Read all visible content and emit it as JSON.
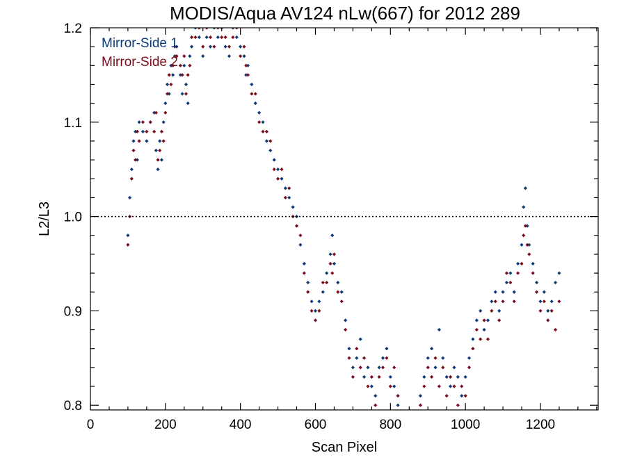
{
  "chart_data": {
    "type": "scatter",
    "title": "MODIS/Aqua AV124 nLw(667) for 2012 289",
    "xlabel": "Scan Pixel",
    "ylabel": "L2/L3",
    "xlim": [
      0,
      1354
    ],
    "ylim": [
      0.795,
      1.2
    ],
    "x_ticks": [
      0,
      200,
      400,
      600,
      800,
      1000,
      1200
    ],
    "y_ticks": [
      0.8,
      0.9,
      1.0,
      1.1,
      1.2
    ],
    "x_tick_labels": [
      "0",
      "200",
      "400",
      "600",
      "800",
      "1000",
      "1200"
    ],
    "y_tick_labels": [
      "0.8",
      "0.9",
      "1.0",
      "1.1",
      "1.2"
    ],
    "reference_line": {
      "y": 1.0,
      "style": "dotted"
    },
    "legend": {
      "placement": "top-left"
    },
    "series": [
      {
        "name": "Mirror-Side 1",
        "color": "#0d3b7a",
        "points": [
          [
            100,
            0.98
          ],
          [
            105,
            1.02
          ],
          [
            110,
            1.05
          ],
          [
            115,
            1.08
          ],
          [
            120,
            1.09
          ],
          [
            125,
            1.06
          ],
          [
            130,
            1.1
          ],
          [
            140,
            1.09
          ],
          [
            150,
            1.08
          ],
          [
            160,
            1.1
          ],
          [
            170,
            1.11
          ],
          [
            175,
            1.07
          ],
          [
            180,
            1.05
          ],
          [
            185,
            1.08
          ],
          [
            190,
            1.06
          ],
          [
            195,
            1.1
          ],
          [
            200,
            1.12
          ],
          [
            205,
            1.14
          ],
          [
            210,
            1.13
          ],
          [
            215,
            1.16
          ],
          [
            220,
            1.15
          ],
          [
            225,
            1.17
          ],
          [
            230,
            1.18
          ],
          [
            240,
            1.15
          ],
          [
            245,
            1.13
          ],
          [
            250,
            1.16
          ],
          [
            255,
            1.14
          ],
          [
            260,
            1.12
          ],
          [
            265,
            1.17
          ],
          [
            270,
            1.18
          ],
          [
            280,
            1.2
          ],
          [
            290,
            1.19
          ],
          [
            300,
            1.17
          ],
          [
            310,
            1.19
          ],
          [
            320,
            1.18
          ],
          [
            330,
            1.2
          ],
          [
            340,
            1.19
          ],
          [
            350,
            1.2
          ],
          [
            360,
            1.18
          ],
          [
            370,
            1.17
          ],
          [
            380,
            1.2
          ],
          [
            390,
            1.19
          ],
          [
            400,
            1.18
          ],
          [
            410,
            1.17
          ],
          [
            415,
            1.15
          ],
          [
            420,
            1.16
          ],
          [
            430,
            1.14
          ],
          [
            440,
            1.12
          ],
          [
            450,
            1.11
          ],
          [
            460,
            1.1
          ],
          [
            470,
            1.08
          ],
          [
            480,
            1.07
          ],
          [
            490,
            1.06
          ],
          [
            500,
            1.05
          ],
          [
            510,
            1.04
          ],
          [
            520,
            1.03
          ],
          [
            530,
            1.02
          ],
          [
            540,
            1.01
          ],
          [
            550,
            1.0
          ],
          [
            560,
            0.97
          ],
          [
            570,
            0.95
          ],
          [
            580,
            0.93
          ],
          [
            590,
            0.91
          ],
          [
            600,
            0.9
          ],
          [
            610,
            0.91
          ],
          [
            620,
            0.92
          ],
          [
            630,
            0.94
          ],
          [
            640,
            0.96
          ],
          [
            645,
            0.98
          ],
          [
            650,
            0.95
          ],
          [
            660,
            0.93
          ],
          [
            670,
            0.92
          ],
          [
            680,
            0.89
          ],
          [
            690,
            0.86
          ],
          [
            700,
            0.84
          ],
          [
            710,
            0.85
          ],
          [
            720,
            0.87
          ],
          [
            730,
            0.83
          ],
          [
            740,
            0.84
          ],
          [
            750,
            0.82
          ],
          [
            760,
            0.81
          ],
          [
            770,
            0.84
          ],
          [
            780,
            0.85
          ],
          [
            790,
            0.86
          ],
          [
            800,
            0.83
          ],
          [
            810,
            0.82
          ],
          [
            820,
            0.8
          ],
          [
            880,
            0.81
          ],
          [
            890,
            0.83
          ],
          [
            900,
            0.85
          ],
          [
            910,
            0.86
          ],
          [
            920,
            0.84
          ],
          [
            930,
            0.88
          ],
          [
            940,
            0.85
          ],
          [
            950,
            0.83
          ],
          [
            960,
            0.82
          ],
          [
            970,
            0.84
          ],
          [
            980,
            0.83
          ],
          [
            990,
            0.81
          ],
          [
            1000,
            0.83
          ],
          [
            1010,
            0.85
          ],
          [
            1020,
            0.87
          ],
          [
            1030,
            0.89
          ],
          [
            1040,
            0.9
          ],
          [
            1050,
            0.88
          ],
          [
            1060,
            0.89
          ],
          [
            1070,
            0.91
          ],
          [
            1080,
            0.92
          ],
          [
            1090,
            0.9
          ],
          [
            1100,
            0.92
          ],
          [
            1110,
            0.93
          ],
          [
            1120,
            0.94
          ],
          [
            1130,
            0.92
          ],
          [
            1140,
            0.95
          ],
          [
            1150,
            0.97
          ],
          [
            1155,
            1.01
          ],
          [
            1160,
            1.03
          ],
          [
            1165,
            0.99
          ],
          [
            1170,
            0.97
          ],
          [
            1180,
            0.95
          ],
          [
            1190,
            0.93
          ],
          [
            1200,
            0.91
          ],
          [
            1210,
            0.92
          ],
          [
            1220,
            0.9
          ],
          [
            1230,
            0.91
          ],
          [
            1240,
            0.93
          ],
          [
            1250,
            0.94
          ]
        ]
      },
      {
        "name": "Mirror-Side 2",
        "color": "#7d0c1a",
        "points": [
          [
            100,
            0.97
          ],
          [
            105,
            1.0
          ],
          [
            110,
            1.04
          ],
          [
            115,
            1.07
          ],
          [
            120,
            1.06
          ],
          [
            125,
            1.09
          ],
          [
            130,
            1.08
          ],
          [
            140,
            1.1
          ],
          [
            150,
            1.09
          ],
          [
            160,
            1.1
          ],
          [
            170,
            1.09
          ],
          [
            175,
            1.11
          ],
          [
            180,
            1.06
          ],
          [
            185,
            1.07
          ],
          [
            190,
            1.09
          ],
          [
            195,
            1.08
          ],
          [
            200,
            1.11
          ],
          [
            205,
            1.13
          ],
          [
            210,
            1.15
          ],
          [
            215,
            1.14
          ],
          [
            220,
            1.16
          ],
          [
            225,
            1.18
          ],
          [
            230,
            1.17
          ],
          [
            240,
            1.16
          ],
          [
            245,
            1.15
          ],
          [
            250,
            1.17
          ],
          [
            255,
            1.13
          ],
          [
            260,
            1.15
          ],
          [
            265,
            1.16
          ],
          [
            270,
            1.19
          ],
          [
            280,
            1.19
          ],
          [
            290,
            1.2
          ],
          [
            300,
            1.18
          ],
          [
            310,
            1.2
          ],
          [
            320,
            1.19
          ],
          [
            330,
            1.18
          ],
          [
            340,
            1.2
          ],
          [
            350,
            1.19
          ],
          [
            360,
            1.19
          ],
          [
            370,
            1.18
          ],
          [
            380,
            1.19
          ],
          [
            390,
            1.2
          ],
          [
            400,
            1.17
          ],
          [
            410,
            1.18
          ],
          [
            415,
            1.16
          ],
          [
            420,
            1.15
          ],
          [
            430,
            1.13
          ],
          [
            440,
            1.13
          ],
          [
            450,
            1.1
          ],
          [
            460,
            1.09
          ],
          [
            470,
            1.09
          ],
          [
            480,
            1.08
          ],
          [
            490,
            1.05
          ],
          [
            500,
            1.04
          ],
          [
            510,
            1.05
          ],
          [
            520,
            1.02
          ],
          [
            530,
            1.03
          ],
          [
            540,
            1.0
          ],
          [
            550,
            0.99
          ],
          [
            560,
            0.98
          ],
          [
            570,
            0.94
          ],
          [
            580,
            0.92
          ],
          [
            590,
            0.9
          ],
          [
            600,
            0.89
          ],
          [
            610,
            0.9
          ],
          [
            620,
            0.93
          ],
          [
            630,
            0.93
          ],
          [
            640,
            0.95
          ],
          [
            645,
            0.94
          ],
          [
            650,
            0.96
          ],
          [
            660,
            0.92
          ],
          [
            670,
            0.91
          ],
          [
            680,
            0.88
          ],
          [
            690,
            0.85
          ],
          [
            700,
            0.83
          ],
          [
            710,
            0.86
          ],
          [
            720,
            0.84
          ],
          [
            730,
            0.85
          ],
          [
            740,
            0.82
          ],
          [
            750,
            0.83
          ],
          [
            760,
            0.8
          ],
          [
            770,
            0.83
          ],
          [
            780,
            0.84
          ],
          [
            790,
            0.85
          ],
          [
            800,
            0.82
          ],
          [
            810,
            0.84
          ],
          [
            820,
            0.81
          ],
          [
            880,
            0.8
          ],
          [
            890,
            0.82
          ],
          [
            900,
            0.84
          ],
          [
            910,
            0.83
          ],
          [
            920,
            0.85
          ],
          [
            930,
            0.82
          ],
          [
            940,
            0.84
          ],
          [
            950,
            0.81
          ],
          [
            960,
            0.83
          ],
          [
            970,
            0.82
          ],
          [
            980,
            0.8
          ],
          [
            990,
            0.82
          ],
          [
            1000,
            0.81
          ],
          [
            1010,
            0.84
          ],
          [
            1020,
            0.86
          ],
          [
            1030,
            0.88
          ],
          [
            1040,
            0.87
          ],
          [
            1050,
            0.89
          ],
          [
            1060,
            0.87
          ],
          [
            1070,
            0.9
          ],
          [
            1080,
            0.91
          ],
          [
            1090,
            0.89
          ],
          [
            1100,
            0.91
          ],
          [
            1110,
            0.94
          ],
          [
            1120,
            0.93
          ],
          [
            1130,
            0.91
          ],
          [
            1140,
            0.94
          ],
          [
            1150,
            0.95
          ],
          [
            1155,
            0.98
          ],
          [
            1160,
            0.99
          ],
          [
            1165,
            0.97
          ],
          [
            1170,
            0.96
          ],
          [
            1180,
            0.94
          ],
          [
            1190,
            0.92
          ],
          [
            1200,
            0.9
          ],
          [
            1210,
            0.91
          ],
          [
            1220,
            0.89
          ],
          [
            1230,
            0.9
          ],
          [
            1240,
            0.88
          ],
          [
            1250,
            0.91
          ]
        ]
      }
    ]
  }
}
